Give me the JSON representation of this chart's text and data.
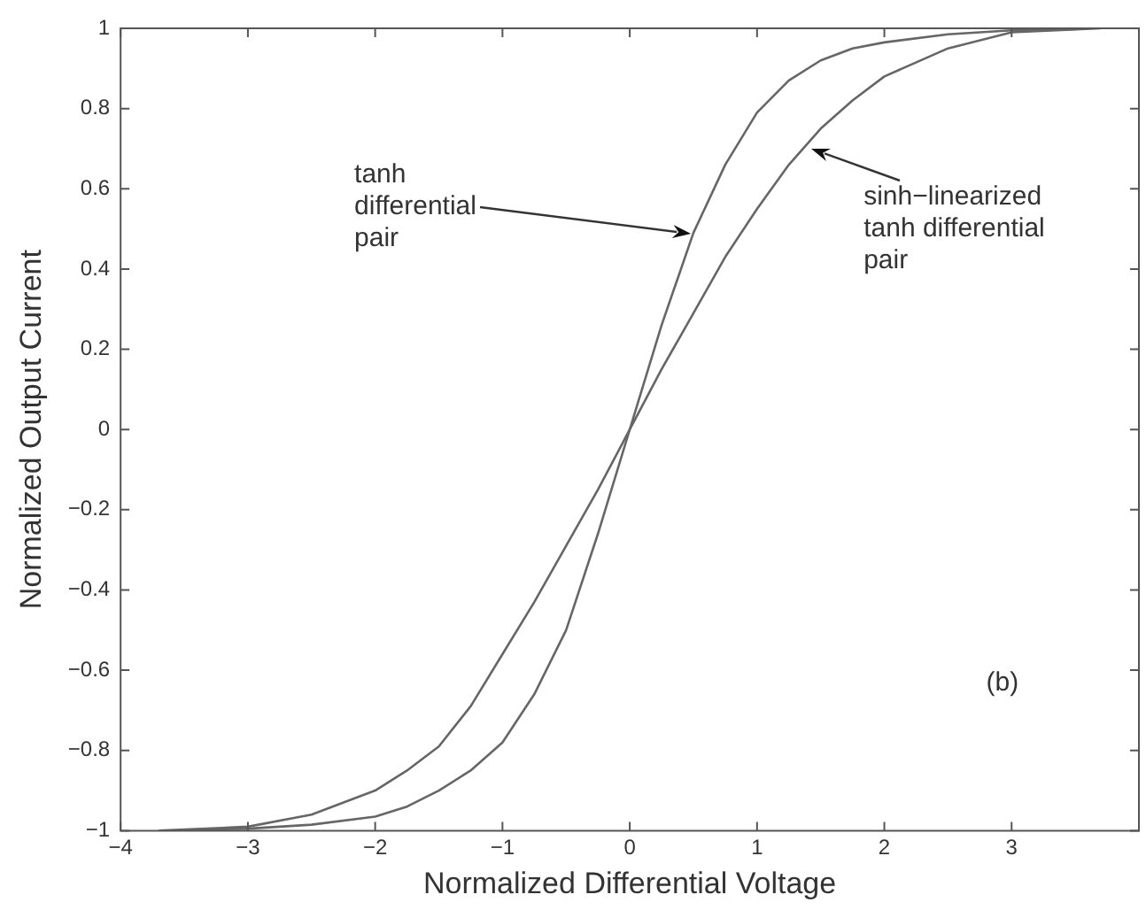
{
  "chart_data": {
    "type": "line",
    "xlabel": "Normalized Differential Voltage",
    "ylabel": "Normalized Output Current",
    "xlim": [
      -4,
      4
    ],
    "xticks": [
      -4,
      -3,
      -2,
      -1,
      0,
      1,
      2,
      3
    ],
    "ylim": [
      -1,
      1
    ],
    "yticks": [
      -1,
      -0.8,
      -0.6,
      -0.4,
      -0.2,
      0,
      0.2,
      0.4,
      0.6,
      0.8,
      1
    ],
    "grid": false,
    "legend": false,
    "marker": "none",
    "line_style": "solid",
    "series": [
      {
        "color": "#666666",
        "x": [
          -3.5,
          -3,
          -2.5,
          -2,
          -1.75,
          -1.5,
          -1.25,
          -1,
          -0.75,
          -0.5,
          -0.25,
          0,
          0.25,
          0.5,
          0.75,
          1,
          1.25,
          1.5,
          1.75,
          2,
          2.5,
          3,
          3.5
        ],
        "values": [
          -0.998,
          -0.995,
          -0.985,
          -0.965,
          -0.94,
          -0.9,
          -0.85,
          -0.78,
          -0.66,
          -0.5,
          -0.26,
          0,
          0.26,
          0.49,
          0.66,
          0.79,
          0.87,
          0.92,
          0.95,
          0.965,
          0.985,
          0.995,
          0.998
        ]
      },
      {
        "color": "#666666",
        "x": [
          -3.7,
          -3,
          -2.5,
          -2,
          -1.75,
          -1.5,
          -1.25,
          -1,
          -0.75,
          -0.5,
          -0.25,
          0,
          0.25,
          0.5,
          0.75,
          1,
          1.25,
          1.5,
          1.75,
          2,
          2.5,
          3,
          3.7
        ],
        "values": [
          -1,
          -0.99,
          -0.96,
          -0.9,
          -0.85,
          -0.79,
          -0.69,
          -0.56,
          -0.43,
          -0.29,
          -0.15,
          0,
          0.15,
          0.29,
          0.43,
          0.55,
          0.66,
          0.75,
          0.82,
          0.88,
          0.95,
          0.99,
          1
        ]
      }
    ],
    "annotations": [
      {
        "text": "tanh differential pair",
        "x": 0.48,
        "y": 0.49
      },
      {
        "text": "sinh−linearized tanh differential pair",
        "x": 1.42,
        "y": 0.7
      },
      "(b)"
    ]
  }
}
